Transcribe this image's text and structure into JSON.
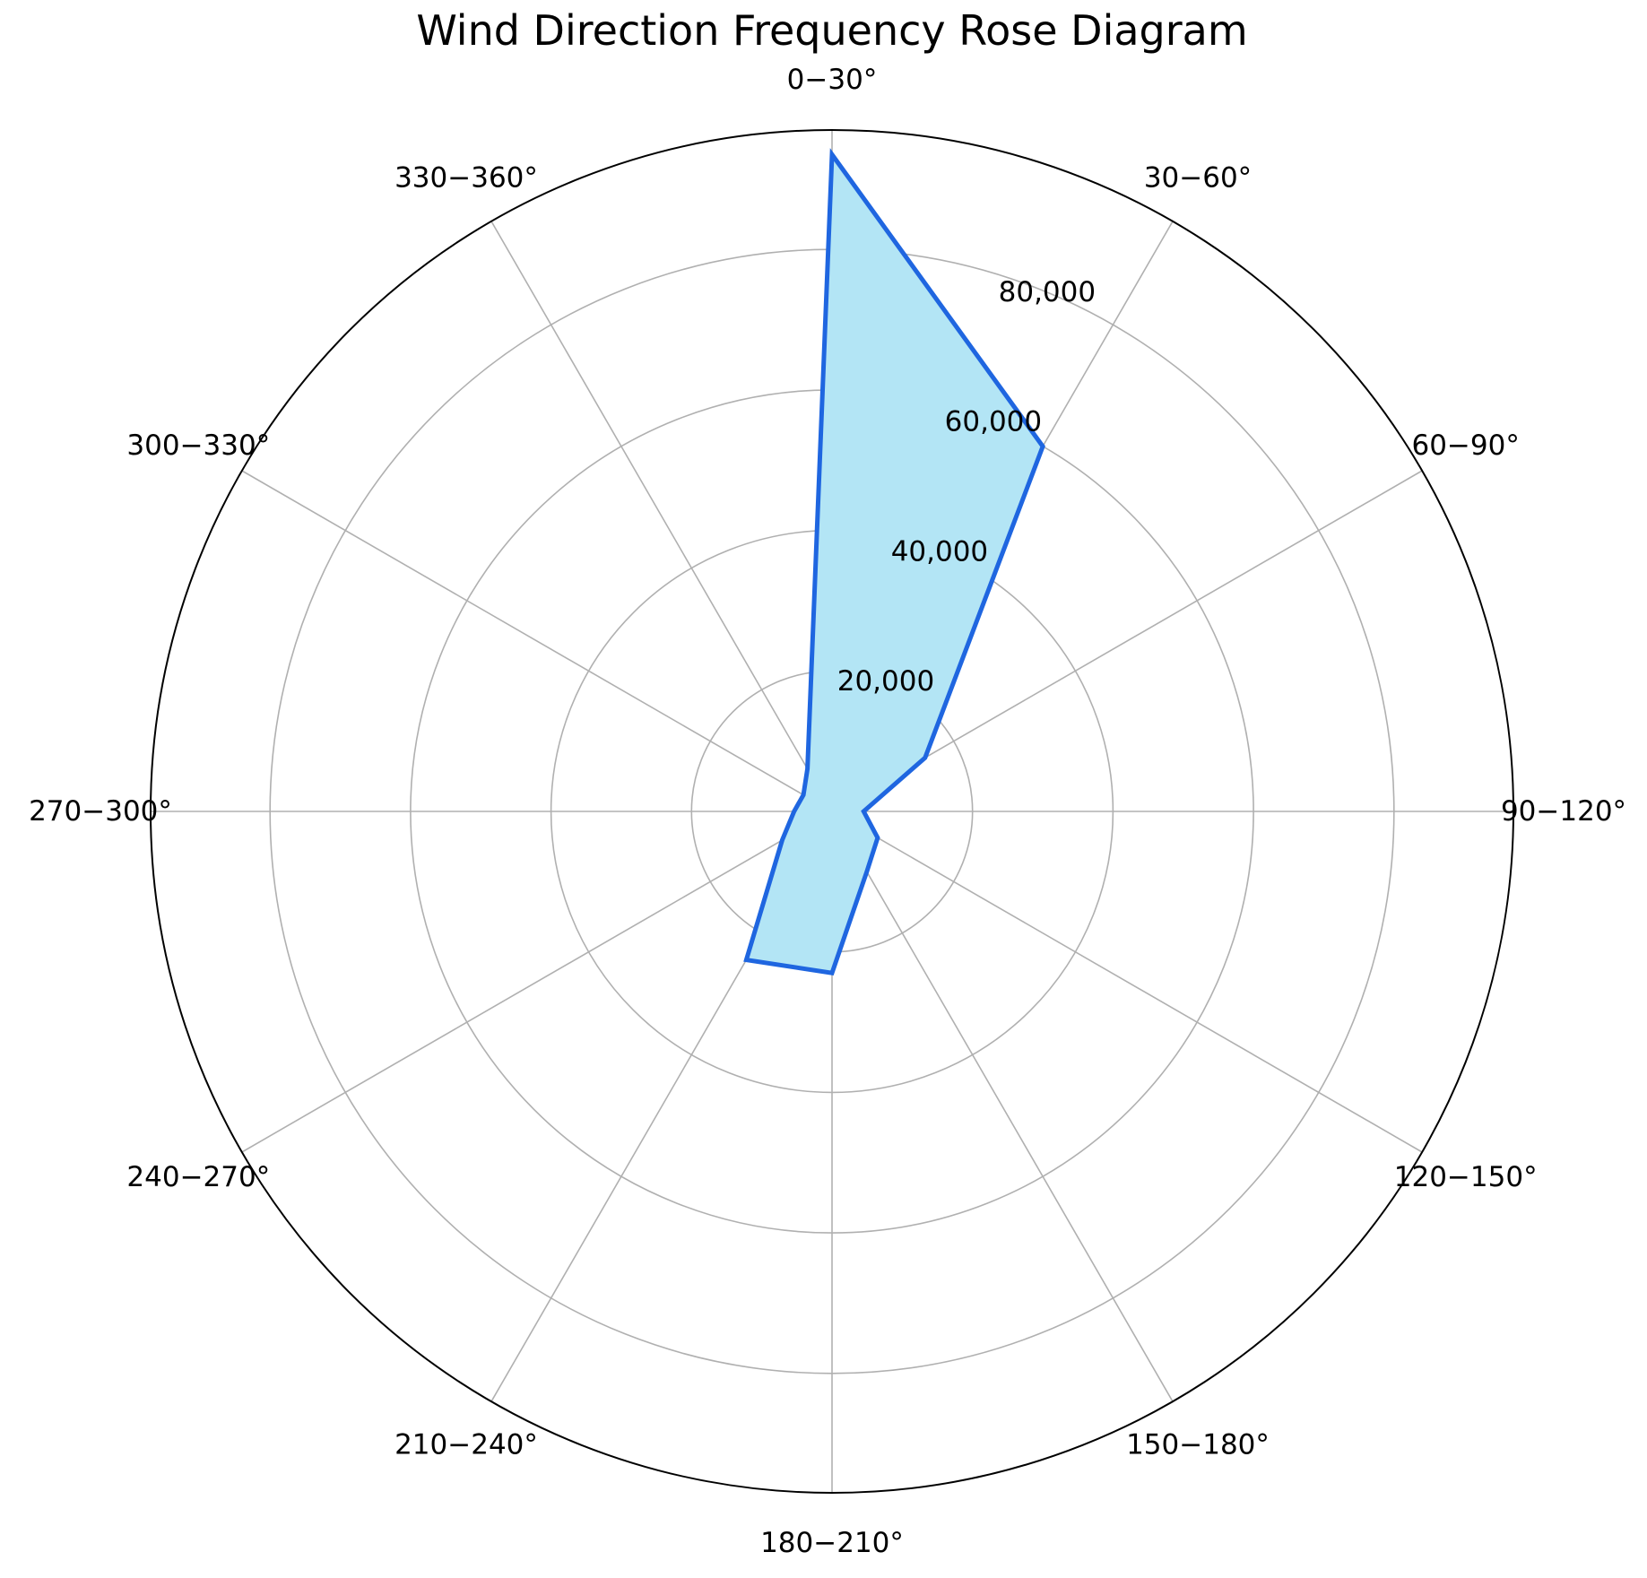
{
  "chart_data": {
    "type": "radar",
    "title": "Wind Direction Frequency Rose Diagram",
    "categories": [
      "0−30°",
      "30−60°",
      "60−90°",
      "90−120°",
      "120−150°",
      "150−180°",
      "180−210°",
      "210−240°",
      "240−270°",
      "270−300°",
      "300−330°",
      "330−360°"
    ],
    "series": [
      {
        "values": [
          93500,
          60000,
          15300,
          4500,
          7500,
          9900,
          23000,
          24400,
          8200,
          5400,
          4700,
          7000
        ]
      }
    ],
    "rlim": [
      0,
      97000
    ],
    "r_ticks": [
      20000,
      40000,
      60000,
      80000
    ],
    "r_tick_labels": [
      "20,000",
      "40,000",
      "60,000",
      "80,000"
    ],
    "direction": "clockwise",
    "zero_location": "top",
    "grid": true,
    "colors": {
      "fill": "#b3e5f5",
      "line": "#1f66e0",
      "grid": "#b0b0b0",
      "frame": "#000000"
    }
  }
}
